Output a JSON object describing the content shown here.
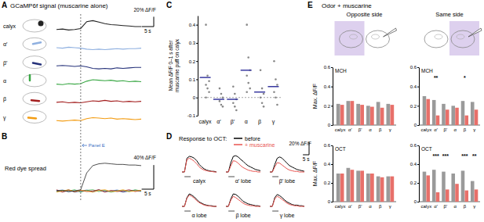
{
  "chart_data": [
    {
      "type": "line",
      "title": "GCaMP6f signal (muscarine alone)",
      "annotations": [
        "A",
        "Panel E"
      ],
      "tick_labels": false,
      "x": [
        -10,
        -7.5,
        -5,
        -2.5,
        0,
        2.5,
        5,
        7.5,
        10,
        12.5,
        15,
        17.5,
        20,
        22.5,
        25
      ],
      "xlim": [
        -10,
        25
      ],
      "ylim": [
        -10,
        25
      ],
      "puff_time": 0,
      "scale_bar": {
        "x": 5,
        "y": 20,
        "x_label": "5 s",
        "y_label": "20% ΔF/F"
      },
      "series": [
        {
          "name": "calyx",
          "color": "#222222",
          "values": [
            0,
            1,
            -1,
            0,
            2,
            16,
            18,
            15,
            12,
            10,
            9,
            8,
            7,
            6,
            6
          ]
        },
        {
          "name": "α′",
          "color": "#8fb0e0",
          "values": [
            0,
            -1,
            1,
            0,
            -1,
            -3,
            -4,
            -3,
            -4,
            -3,
            -2,
            -3,
            -2,
            -2,
            -1
          ]
        },
        {
          "name": "β′",
          "color": "#26327a",
          "values": [
            0,
            1,
            0,
            -1,
            0,
            -2,
            -5,
            -6,
            -5,
            -6,
            -4,
            -5,
            -4,
            -3,
            -3
          ]
        },
        {
          "name": "α",
          "color": "#3aa845",
          "values": [
            0,
            -1,
            1,
            0,
            1,
            6,
            9,
            8,
            7,
            8,
            6,
            7,
            5,
            6,
            5
          ]
        },
        {
          "name": "β",
          "color": "#a31d1d",
          "values": [
            0,
            1,
            -1,
            0,
            -1,
            1,
            3,
            2,
            4,
            2,
            3,
            1,
            2,
            1,
            2
          ]
        },
        {
          "name": "γ",
          "color": "#f39c12",
          "values": [
            0,
            -1,
            0,
            1,
            0,
            4,
            6,
            5,
            4,
            5,
            3,
            4,
            3,
            2,
            3
          ]
        }
      ]
    },
    {
      "type": "line",
      "title": "Red dye spread",
      "annotations": [
        "B"
      ],
      "tick_labels": false,
      "x": [
        -10,
        -7.5,
        -5,
        -2.5,
        0,
        2.5,
        5,
        7.5,
        10,
        12.5,
        15,
        17.5,
        20,
        22.5,
        25
      ],
      "xlim": [
        -10,
        25
      ],
      "ylim": [
        -10,
        60
      ],
      "scale_bar": {
        "x": 5,
        "y": 40,
        "x_label": "5 s",
        "y_label": "40% ΔF/F"
      },
      "series": [
        {
          "color": "#8fb0e0",
          "values": [
            0,
            2,
            -2,
            1,
            -1,
            2,
            -2,
            1,
            0,
            -1,
            2,
            -1,
            1,
            0,
            -1
          ]
        },
        {
          "color": "#26327a",
          "values": [
            1,
            -1,
            2,
            -2,
            0,
            1,
            -1,
            2,
            -1,
            0,
            1,
            -2,
            0,
            1,
            0
          ]
        },
        {
          "color": "#3aa845",
          "values": [
            -1,
            1,
            0,
            2,
            -2,
            1,
            2,
            -1,
            1,
            -2,
            0,
            1,
            -1,
            2,
            0
          ]
        },
        {
          "color": "#a31d1d",
          "values": [
            2,
            -2,
            1,
            -1,
            1,
            -1,
            0,
            2,
            -2,
            1,
            -1,
            0,
            2,
            -1,
            1
          ]
        },
        {
          "color": "#f39c12",
          "values": [
            -2,
            0,
            2,
            -1,
            1,
            0,
            -2,
            1,
            2,
            -1,
            0,
            2,
            -1,
            0,
            1
          ]
        },
        {
          "color": "#222222",
          "values": [
            0,
            1,
            -1,
            0,
            2,
            30,
            42,
            45,
            46,
            45,
            44,
            44,
            43,
            43,
            42
          ]
        }
      ]
    },
    {
      "type": "scatter",
      "annotations": [
        "C"
      ],
      "ylabel": "Mean ΔF/F 0–1 s after muscarine puff on calyx",
      "categories": [
        "calyx",
        "α′",
        "β′",
        "α",
        "β",
        "γ"
      ],
      "points": [
        [
          0.4,
          0.12,
          0.09,
          0.07,
          0.05,
          0.03,
          0.0
        ],
        [
          0.05,
          0.02,
          0.0,
          -0.02,
          -0.04,
          -0.05
        ],
        [
          0.06,
          0.02,
          -0.01,
          -0.03,
          -0.05,
          -0.07
        ],
        [
          0.4,
          0.22,
          0.15,
          0.12,
          0.08,
          0.05,
          0.03
        ],
        [
          0.15,
          0.05,
          0.02,
          0.0,
          -0.03,
          -0.05
        ],
        [
          0.2,
          0.1,
          0.07,
          0.03,
          0.0,
          -0.04
        ]
      ],
      "means": [
        0.11,
        -0.01,
        -0.01,
        0.15,
        0.03,
        0.06
      ],
      "color": "#3a3aa0",
      "ylim": [
        -0.1,
        0.45
      ],
      "yticks": [
        -0.1,
        0,
        0.1,
        0.2,
        0.3,
        0.4
      ],
      "baseline": 0
    },
    {
      "type": "line",
      "title": "Response to OCT:",
      "annotations": [
        "D"
      ],
      "tick_labels": false,
      "x": [
        0,
        2,
        4,
        6,
        8,
        10,
        12,
        14,
        16,
        18,
        20,
        22,
        24,
        26,
        28
      ],
      "xlim": [
        0,
        28
      ],
      "ylim": [
        -5,
        30
      ],
      "stimulus": [
        2,
        7
      ],
      "scale_bar": {
        "x": 5,
        "y": 20,
        "x_label": "5 s",
        "y_label": "20% ΔF/F"
      },
      "series": [
        {
          "name": "before",
          "color": "#000000"
        },
        {
          "name": "+ muscarine",
          "color": "#e8534f"
        }
      ],
      "panels": [
        {
          "title": "calyx",
          "values": [
            [
              0,
              0,
              22,
              25,
              24,
              22,
              18,
              12,
              8,
              5,
              3,
              2,
              1,
              1,
              0
            ],
            [
              0,
              0,
              20,
              22,
              20,
              17,
              13,
              8,
              5,
              3,
              2,
              1,
              1,
              0,
              0
            ]
          ]
        },
        {
          "title": "α′ lobe",
          "values": [
            [
              0,
              0,
              15,
              25,
              26,
              24,
              20,
              17,
              13,
              10,
              8,
              6,
              4,
              3,
              2
            ],
            [
              0,
              0,
              10,
              18,
              17,
              14,
              10,
              7,
              5,
              3,
              2,
              1,
              1,
              0,
              0
            ]
          ]
        },
        {
          "title": "β′ lobe",
          "values": [
            [
              0,
              0,
              12,
              22,
              24,
              22,
              18,
              14,
              10,
              8,
              6,
              4,
              3,
              2,
              1
            ],
            [
              0,
              0,
              8,
              15,
              14,
              11,
              8,
              5,
              3,
              2,
              1,
              1,
              0,
              0,
              0
            ]
          ]
        },
        {
          "title": "α lobe",
          "values": [
            [
              0,
              0,
              14,
              20,
              18,
              15,
              11,
              7,
              5,
              3,
              2,
              1,
              1,
              0,
              0
            ],
            [
              0,
              0,
              13,
              18,
              16,
              13,
              9,
              6,
              4,
              2,
              1,
              1,
              0,
              0,
              0
            ]
          ]
        },
        {
          "title": "β lobe",
          "values": [
            [
              0,
              0,
              12,
              20,
              19,
              16,
              12,
              8,
              6,
              4,
              3,
              2,
              1,
              1,
              0
            ],
            [
              0,
              0,
              10,
              16,
              14,
              11,
              8,
              5,
              3,
              2,
              1,
              1,
              0,
              0,
              0
            ]
          ]
        },
        {
          "title": "γ lobe",
          "values": [
            [
              0,
              0,
              14,
              19,
              17,
              14,
              10,
              7,
              5,
              3,
              2,
              2,
              1,
              1,
              0
            ],
            [
              0,
              0,
              12,
              16,
              14,
              11,
              8,
              5,
              3,
              2,
              1,
              1,
              0,
              0,
              0
            ]
          ]
        }
      ]
    },
    {
      "type": "bar",
      "title": "Odor + muscarine",
      "annotations": [
        "E"
      ],
      "columns": [
        "Opposite side",
        "Same side"
      ],
      "ylabel": "Max. ΔF/F",
      "categories": [
        "calyx",
        "α′",
        "β′",
        "α",
        "β",
        "γ"
      ],
      "colors": [
        "#9a9a9a",
        "#e8706a"
      ],
      "ylim": [
        0,
        0.6
      ],
      "yticks": [
        0,
        0.2,
        0.4,
        0.6
      ],
      "plots": [
        {
          "column": 0,
          "title": "MCH",
          "values": [
            [
              0.22,
              0.25,
              0.22,
              0.2,
              0.24,
              0.22
            ],
            [
              0.21,
              0.25,
              0.21,
              0.19,
              0.18,
              0.21
            ]
          ],
          "stars": [
            null,
            null,
            null,
            null,
            null,
            null
          ]
        },
        {
          "column": 0,
          "title": "OCT",
          "values": [
            [
              0.3,
              0.36,
              0.33,
              0.3,
              0.27,
              0.27
            ],
            [
              0.3,
              0.34,
              0.33,
              0.3,
              0.26,
              0.27
            ]
          ],
          "stars": [
            null,
            null,
            null,
            null,
            null,
            null
          ]
        },
        {
          "column": 1,
          "title": "MCH",
          "values": [
            [
              0.3,
              0.26,
              0.22,
              0.2,
              0.25,
              0.24
            ],
            [
              0.27,
              0.1,
              0.16,
              0.18,
              0.1,
              0.16
            ]
          ],
          "stars": [
            null,
            "**",
            null,
            null,
            "*",
            null
          ]
        },
        {
          "column": 1,
          "title": "OCT",
          "values": [
            [
              0.32,
              0.34,
              0.32,
              0.3,
              0.33,
              0.22
            ],
            [
              0.28,
              0.1,
              0.13,
              0.19,
              0.12,
              0.13
            ]
          ],
          "stars": [
            null,
            "***",
            "***",
            null,
            "***",
            "**"
          ]
        }
      ]
    }
  ]
}
